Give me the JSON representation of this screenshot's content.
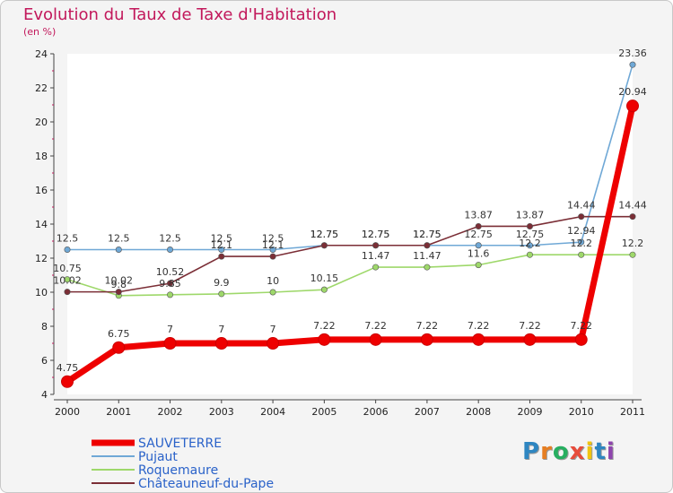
{
  "chart_data": {
    "type": "line",
    "title": "Evolution du Taux de Taxe d'Habitation",
    "subtitle": "(en %)",
    "x": [
      "2000",
      "2001",
      "2002",
      "2003",
      "2004",
      "2005",
      "2006",
      "2007",
      "2008",
      "2009",
      "2010",
      "2011"
    ],
    "ylim": [
      4,
      24
    ],
    "yticks": [
      4,
      6,
      8,
      10,
      12,
      14,
      16,
      18,
      20,
      22,
      24
    ],
    "grid": false,
    "legend_position": "bottom-left",
    "series": [
      {
        "name": "SAUVETERRE",
        "color": "#ee0000",
        "values": [
          4.75,
          6.75,
          7,
          7,
          7,
          7.22,
          7.22,
          7.22,
          7.22,
          7.22,
          7.22,
          20.94
        ],
        "labels": [
          "4.75",
          "6.75",
          "7",
          "7",
          "7",
          "7.22",
          "7.22",
          "7.22",
          "7.22",
          "7.22",
          "7.22",
          "20.94"
        ]
      },
      {
        "name": "Pujaut",
        "color": "#6fa8d6",
        "values": [
          12.5,
          12.5,
          12.5,
          12.5,
          12.5,
          12.75,
          12.75,
          12.75,
          12.75,
          12.75,
          12.94,
          23.36
        ],
        "labels": [
          "12.5",
          "12.5",
          "12.5",
          "12.5",
          "12.5",
          "12.75",
          "12.75",
          "12.75",
          "12.75",
          "12.75",
          "12.94",
          "23.36"
        ]
      },
      {
        "name": "Roquemaure",
        "color": "#9ed86a",
        "values": [
          10.75,
          9.8,
          9.85,
          9.9,
          10,
          10.15,
          11.47,
          11.47,
          11.6,
          12.2,
          12.2,
          12.2
        ],
        "labels": [
          "10.75",
          "9.8",
          "9.85",
          "9.9",
          "10",
          "10.15",
          "11.47",
          "11.47",
          "11.6",
          "12.2",
          "12.2",
          "12.2"
        ]
      },
      {
        "name": "Châteauneuf-du-Pape",
        "color": "#7b2e36",
        "values": [
          10.02,
          10.02,
          10.52,
          12.1,
          12.1,
          12.75,
          12.75,
          12.75,
          13.87,
          13.87,
          14.44,
          14.44
        ],
        "labels": [
          "10.02",
          "10.02",
          "10.52",
          "12.1",
          "12.1",
          "12.75",
          "12.75",
          "12.75",
          "13.87",
          "13.87",
          "14.44",
          "14.44"
        ]
      }
    ]
  },
  "logo": {
    "letters": [
      "P",
      "r",
      "o",
      "x",
      "i",
      "t",
      "i"
    ],
    "colors": [
      "#2e86c1",
      "#e67e22",
      "#27ae60",
      "#e74c3c",
      "#f1c40f",
      "#2e86c1",
      "#8e44ad"
    ]
  }
}
